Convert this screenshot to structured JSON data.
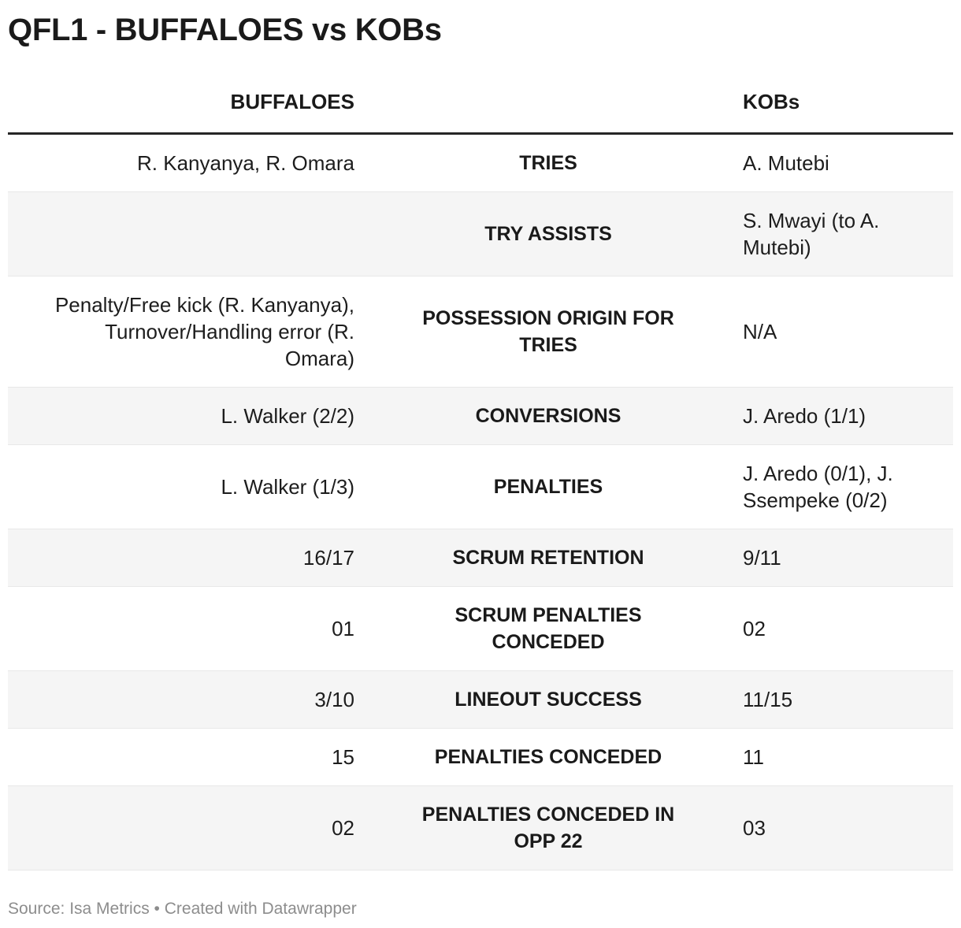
{
  "chart_data": {
    "type": "table",
    "title": "QFL1 - BUFFALOES vs KOBs",
    "columns": [
      "BUFFALOES",
      "",
      "KOBs"
    ],
    "rows": [
      {
        "stat": "TRIES",
        "buffaloes": "R. Kanyanya, R. Omara",
        "kobs": "A. Mutebi"
      },
      {
        "stat": "TRY ASSISTS",
        "buffaloes": "",
        "kobs": "S. Mwayi (to A. Mutebi)"
      },
      {
        "stat": "POSSESSION ORIGIN FOR TRIES",
        "buffaloes": "Penalty/Free kick (R. Kanyanya), Turnover/Handling error (R. Omara)",
        "kobs": "N/A"
      },
      {
        "stat": "CONVERSIONS",
        "buffaloes": "L. Walker (2/2)",
        "kobs": "J. Aredo (1/1)"
      },
      {
        "stat": "PENALTIES",
        "buffaloes": "L. Walker (1/3)",
        "kobs": "J. Aredo (0/1), J. Ssempeke (0/2)"
      },
      {
        "stat": "SCRUM RETENTION",
        "buffaloes": "16/17",
        "kobs": "9/11"
      },
      {
        "stat": "SCRUM PENALTIES CONCEDED",
        "buffaloes": "01",
        "kobs": "02"
      },
      {
        "stat": "LINEOUT SUCCESS",
        "buffaloes": "3/10",
        "kobs": "11/15"
      },
      {
        "stat": "PENALTIES CONCEDED",
        "buffaloes": "15",
        "kobs": "11"
      },
      {
        "stat": "PENALTIES CONCEDED IN OPP 22",
        "buffaloes": "02",
        "kobs": "03"
      }
    ],
    "layout": {
      "left_column_align": "right",
      "stat_column_align": "center",
      "right_column_align": "left",
      "stripe_rows": "even"
    }
  },
  "footer": {
    "text": "Source: Isa Metrics • Created with Datawrapper"
  },
  "colors": {
    "text": "#1a1a1a",
    "stripe": "#f5f5f5",
    "row_border": "#e8e8e8",
    "header_rule": "#262626",
    "footer_text": "#8d8d8d",
    "background": "#ffffff"
  }
}
